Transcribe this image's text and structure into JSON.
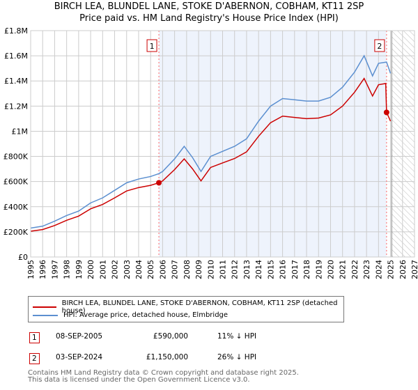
{
  "title": "BIRCH LEA, BLUNDEL LANE, STOKE D'ABERNON, COBHAM, KT11 2SP",
  "subtitle": "Price paid vs. HM Land Registry's House Price Index (HPI)",
  "chart_data": {
    "type": "line",
    "xlim": [
      1995,
      2027
    ],
    "ylim": [
      0,
      1800000
    ],
    "x_ticks": [
      "1995",
      "1996",
      "1997",
      "1998",
      "1999",
      "2000",
      "2001",
      "2002",
      "2003",
      "2004",
      "2005",
      "2006",
      "2007",
      "2008",
      "2009",
      "2010",
      "2011",
      "2012",
      "2013",
      "2014",
      "2015",
      "2016",
      "2017",
      "2018",
      "2019",
      "2020",
      "2021",
      "2022",
      "2023",
      "2024",
      "2025",
      "2026",
      "2027"
    ],
    "y_ticks": [
      {
        "v": 0,
        "label": "£0"
      },
      {
        "v": 200000,
        "label": "£200K"
      },
      {
        "v": 400000,
        "label": "£400K"
      },
      {
        "v": 600000,
        "label": "£600K"
      },
      {
        "v": 800000,
        "label": "£800K"
      },
      {
        "v": 1000000,
        "label": "£1M"
      },
      {
        "v": 1200000,
        "label": "£1.2M"
      },
      {
        "v": 1400000,
        "label": "£1.4M"
      },
      {
        "v": 1600000,
        "label": "£1.6M"
      },
      {
        "v": 1800000,
        "label": "£1.8M"
      }
    ],
    "grid": true,
    "data_end": 2025.1,
    "series": [
      {
        "name": "BIRCH LEA, BLUNDEL LANE, STOKE D'ABERNON, COBHAM, KT11 2SP (detached house)",
        "color": "#cc0000",
        "x": [
          1995,
          1996,
          1997,
          1998,
          1999,
          2000,
          2001,
          2002,
          2003,
          2004,
          2005,
          2005.69,
          2006,
          2007,
          2007.8,
          2008.5,
          2009.2,
          2010,
          2011,
          2012,
          2013,
          2014,
          2015,
          2016,
          2017,
          2018,
          2019,
          2020,
          2021,
          2022,
          2022.8,
          2023.5,
          2024,
          2024.6,
          2024.67,
          2025
        ],
        "y": [
          205000,
          218000,
          250000,
          292000,
          325000,
          383000,
          418000,
          470000,
          525000,
          552000,
          570000,
          590000,
          605000,
          695000,
          780000,
          700000,
          605000,
          712000,
          748000,
          783000,
          836000,
          960000,
          1068000,
          1120000,
          1110000,
          1100000,
          1105000,
          1130000,
          1200000,
          1310000,
          1420000,
          1280000,
          1370000,
          1380000,
          1150000,
          1080000
        ]
      },
      {
        "name": "HPI: Average price, detached house, Elmbridge",
        "color": "#5b8fd0",
        "x": [
          1995,
          1996,
          1997,
          1998,
          1999,
          2000,
          2001,
          2002,
          2003,
          2004,
          2005,
          2005.69,
          2006,
          2007,
          2007.8,
          2008.5,
          2009.2,
          2010,
          2011,
          2012,
          2013,
          2014,
          2015,
          2016,
          2017,
          2018,
          2019,
          2020,
          2021,
          2022,
          2022.8,
          2023.5,
          2024,
          2024.67,
          2025
        ],
        "y": [
          230000,
          245000,
          285000,
          330000,
          365000,
          430000,
          470000,
          530000,
          590000,
          620000,
          640000,
          663000,
          680000,
          780000,
          880000,
          790000,
          680000,
          800000,
          840000,
          880000,
          940000,
          1080000,
          1200000,
          1260000,
          1250000,
          1240000,
          1240000,
          1270000,
          1350000,
          1470000,
          1600000,
          1440000,
          1540000,
          1550000,
          1460000
        ]
      }
    ],
    "annotations": [
      {
        "label": "1",
        "x": 2005.69,
        "y": 590000
      },
      {
        "label": "2",
        "x": 2024.67,
        "y": 1150000
      }
    ]
  },
  "legend": {
    "red": "BIRCH LEA, BLUNDEL LANE, STOKE D'ABERNON, COBHAM, KT11 2SP (detached house)",
    "blue": "HPI: Average price, detached house, Elmbridge"
  },
  "sales": [
    {
      "num": "1",
      "date": "08-SEP-2005",
      "price": "£590,000",
      "hpi": "11% ↓ HPI"
    },
    {
      "num": "2",
      "date": "03-SEP-2024",
      "price": "£1,150,000",
      "hpi": "26% ↓ HPI"
    }
  ],
  "footer": {
    "line1": "Contains HM Land Registry data © Crown copyright and database right 2025.",
    "line2": "This data is licensed under the Open Government Licence v3.0."
  }
}
